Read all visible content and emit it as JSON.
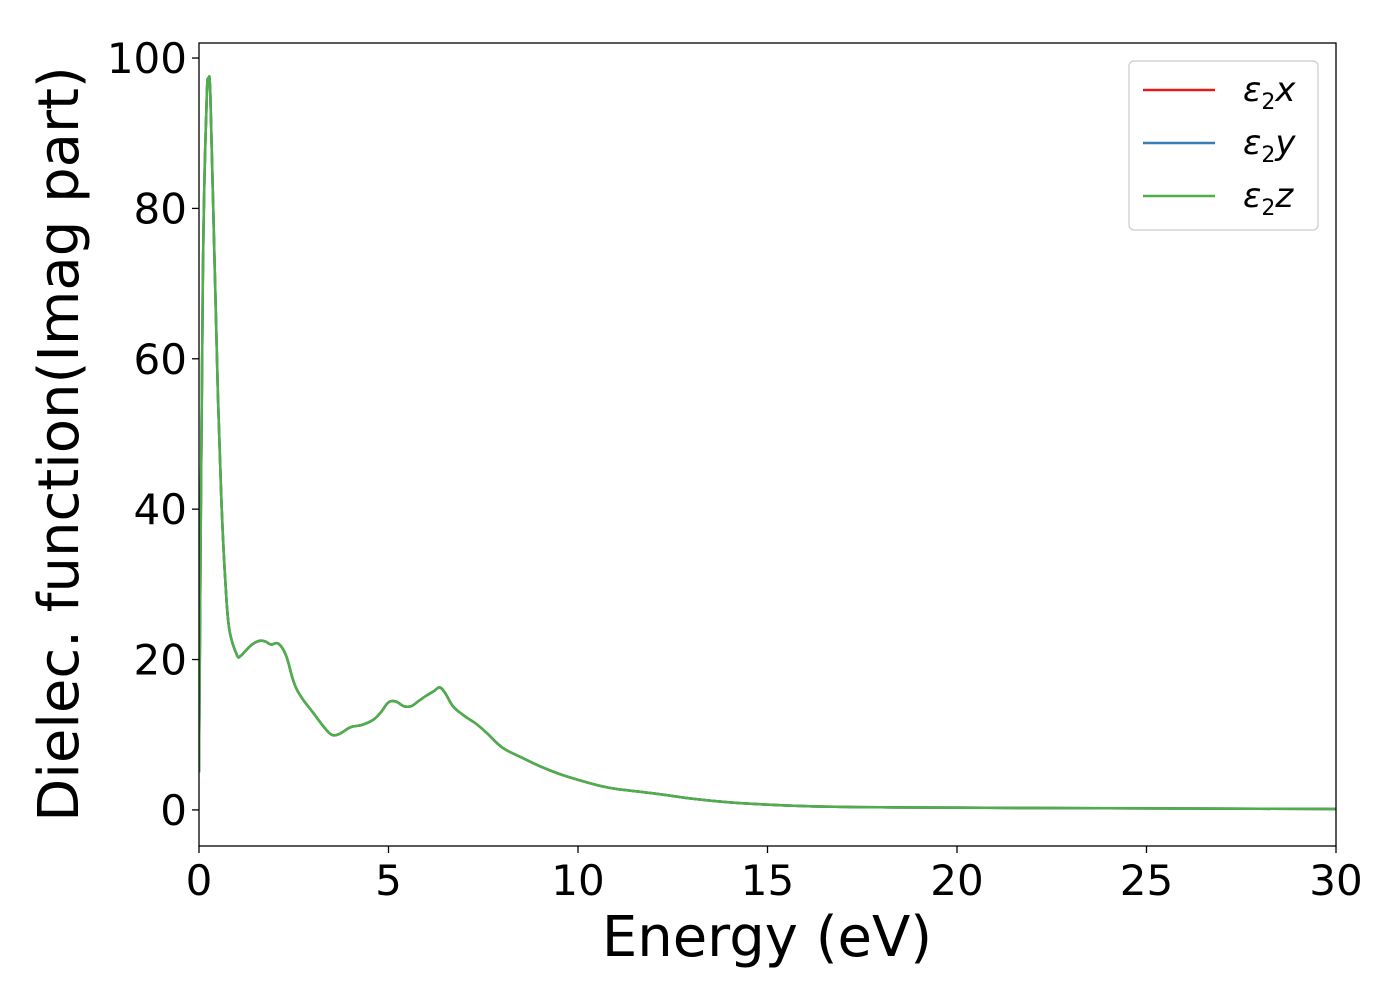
{
  "chart_data": {
    "type": "line",
    "title": "",
    "xlabel": "Energy (eV)",
    "ylabel": "Dielec. function(Imag part)",
    "xlim": [
      0,
      30
    ],
    "ylim": [
      -4.8,
      102
    ],
    "x_ticks": [
      0,
      5,
      10,
      15,
      20,
      25,
      30
    ],
    "y_ticks": [
      0,
      20,
      40,
      60,
      80,
      100
    ],
    "grid": false,
    "legend": "top-right",
    "x": [
      0,
      0.1,
      0.2,
      0.25,
      0.3,
      0.4,
      0.5,
      0.6,
      0.7,
      0.8,
      1.0,
      1.1,
      1.2,
      1.4,
      1.6,
      1.75,
      1.9,
      2.1,
      2.3,
      2.5,
      2.7,
      3.0,
      3.3,
      3.5,
      3.7,
      4.0,
      4.3,
      4.6,
      4.8,
      5.0,
      5.2,
      5.4,
      5.6,
      5.8,
      6.0,
      6.2,
      6.35,
      6.5,
      6.7,
      7.0,
      7.3,
      7.6,
      8.0,
      8.5,
      9.0,
      9.5,
      10.0,
      10.5,
      11.0,
      12.0,
      13.0,
      14.0,
      15.0,
      16.0,
      17.0,
      18.0,
      20.0,
      22.0,
      25.0,
      28.0,
      30.0
    ],
    "series": [
      {
        "name": "ε₂x",
        "color": "#e41a1c",
        "values": [
          5,
          70,
          94,
          97,
          95,
          75,
          55,
          40,
          30,
          24,
          20.6,
          20.5,
          21,
          22,
          22.5,
          22.4,
          22,
          22.1,
          20.5,
          17,
          15,
          13,
          11,
          10,
          10.1,
          11,
          11.3,
          12,
          13,
          14.3,
          14.4,
          13.8,
          13.8,
          14.5,
          15.2,
          15.8,
          16.3,
          15.5,
          13.8,
          12.5,
          11.5,
          10.2,
          8.3,
          7,
          5.8,
          4.8,
          4,
          3.3,
          2.8,
          2.2,
          1.5,
          1,
          0.7,
          0.5,
          0.4,
          0.35,
          0.3,
          0.25,
          0.2,
          0.15,
          0.12
        ]
      },
      {
        "name": "ε₂y",
        "color": "#377eb8",
        "values": [
          5,
          70,
          94,
          97,
          95,
          75,
          55,
          40,
          30,
          24,
          20.6,
          20.5,
          21,
          22,
          22.5,
          22.4,
          22,
          22.1,
          20.5,
          17,
          15,
          13,
          11,
          10,
          10.1,
          11,
          11.3,
          12,
          13,
          14.3,
          14.4,
          13.8,
          13.8,
          14.5,
          15.2,
          15.8,
          16.3,
          15.5,
          13.8,
          12.5,
          11.5,
          10.2,
          8.3,
          7,
          5.8,
          4.8,
          4,
          3.3,
          2.8,
          2.2,
          1.5,
          1,
          0.7,
          0.5,
          0.4,
          0.35,
          0.3,
          0.25,
          0.2,
          0.15,
          0.12
        ]
      },
      {
        "name": "ε₂z",
        "color": "#4daf4a",
        "values": [
          5,
          70,
          94,
          97,
          95,
          75,
          55,
          40,
          30,
          24,
          20.6,
          20.5,
          21,
          22,
          22.5,
          22.4,
          22,
          22.1,
          20.5,
          17,
          15,
          13,
          11,
          10,
          10.1,
          11,
          11.3,
          12,
          13,
          14.3,
          14.4,
          13.8,
          13.8,
          14.5,
          15.2,
          15.8,
          16.3,
          15.5,
          13.8,
          12.5,
          11.5,
          10.2,
          8.3,
          7,
          5.8,
          4.8,
          4,
          3.3,
          2.8,
          2.2,
          1.5,
          1,
          0.7,
          0.5,
          0.4,
          0.35,
          0.3,
          0.25,
          0.2,
          0.15,
          0.12
        ]
      }
    ]
  },
  "legend": {
    "entries": [
      {
        "base": "ε",
        "sub": "2",
        "axis": "x"
      },
      {
        "base": "ε",
        "sub": "2",
        "axis": "y"
      },
      {
        "base": "ε",
        "sub": "2",
        "axis": "z"
      }
    ]
  }
}
